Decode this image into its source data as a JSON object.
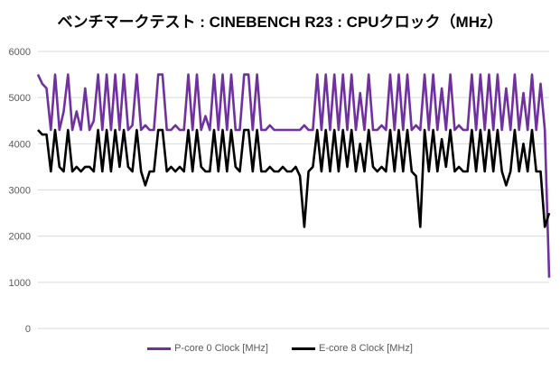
{
  "chart_data": {
    "type": "line",
    "title": "ベンチマークテスト : CINEBENCH R23 : CPUクロック（MHz）",
    "xlabel": "",
    "ylabel": "",
    "ylim": [
      0,
      6000
    ],
    "yticks": [
      "0",
      "1000",
      "2000",
      "3000",
      "4000",
      "5000",
      "6000"
    ],
    "grid": true,
    "legend": "bottom",
    "series": [
      {
        "name": "P-core 0 Clock [MHz]",
        "color": "#7030a0",
        "values": [
          5500,
          5300,
          5200,
          4300,
          5500,
          4300,
          4700,
          5500,
          4300,
          4700,
          4300,
          5200,
          4300,
          4500,
          5500,
          4300,
          5500,
          4300,
          5500,
          4300,
          5500,
          4300,
          4400,
          5500,
          4300,
          4400,
          4300,
          4300,
          5500,
          5500,
          4300,
          4300,
          4400,
          4300,
          4300,
          5500,
          4300,
          5500,
          4300,
          4600,
          4300,
          5500,
          4300,
          5500,
          4300,
          5500,
          4300,
          4300,
          5500,
          5500,
          4300,
          5500,
          4300,
          4300,
          4400,
          4300,
          4300,
          4300,
          4300,
          4300,
          4300,
          4300,
          4400,
          4300,
          4300,
          5500,
          4300,
          5500,
          4300,
          5500,
          4300,
          5500,
          4300,
          5500,
          4300,
          5100,
          4300,
          5500,
          4300,
          4300,
          4400,
          4300,
          5500,
          4300,
          5500,
          4300,
          5500,
          4300,
          4400,
          4300,
          5500,
          4300,
          5500,
          4300,
          5200,
          4300,
          5500,
          4300,
          4400,
          4300,
          4300,
          5500,
          4300,
          5500,
          4300,
          5500,
          4300,
          5500,
          4300,
          5200,
          4300,
          5500,
          4300,
          5100,
          4300,
          5500,
          4300,
          5300,
          4300,
          1100
        ]
      },
      {
        "name": "E-core 8 Clock [MHz]",
        "color": "#000000",
        "values": [
          4300,
          4200,
          4200,
          3400,
          4300,
          3500,
          3400,
          4300,
          3400,
          3500,
          3400,
          3500,
          3500,
          3400,
          4300,
          3400,
          4300,
          3400,
          4300,
          3500,
          4300,
          3500,
          3400,
          4300,
          3400,
          3100,
          3400,
          3400,
          4300,
          4300,
          3400,
          3500,
          3400,
          3500,
          3400,
          4300,
          3400,
          4300,
          3500,
          3400,
          3400,
          4300,
          3400,
          4300,
          3400,
          4300,
          3500,
          3400,
          4300,
          4300,
          3400,
          4300,
          3400,
          3400,
          3500,
          3400,
          3400,
          3500,
          3400,
          3400,
          3500,
          3300,
          2200,
          3400,
          3500,
          4300,
          3400,
          4300,
          3400,
          4300,
          3400,
          4300,
          3500,
          4300,
          3400,
          4000,
          3400,
          4300,
          3500,
          3400,
          3500,
          3400,
          4300,
          3400,
          4300,
          3400,
          4300,
          3400,
          3300,
          2200,
          4300,
          3400,
          4300,
          3400,
          4100,
          3500,
          4300,
          3400,
          3500,
          3400,
          3400,
          4300,
          3400,
          4300,
          3400,
          4300,
          3400,
          4300,
          3400,
          3100,
          3400,
          4300,
          3400,
          4000,
          3400,
          4300,
          3400,
          3400,
          2200,
          2500
        ]
      }
    ]
  }
}
